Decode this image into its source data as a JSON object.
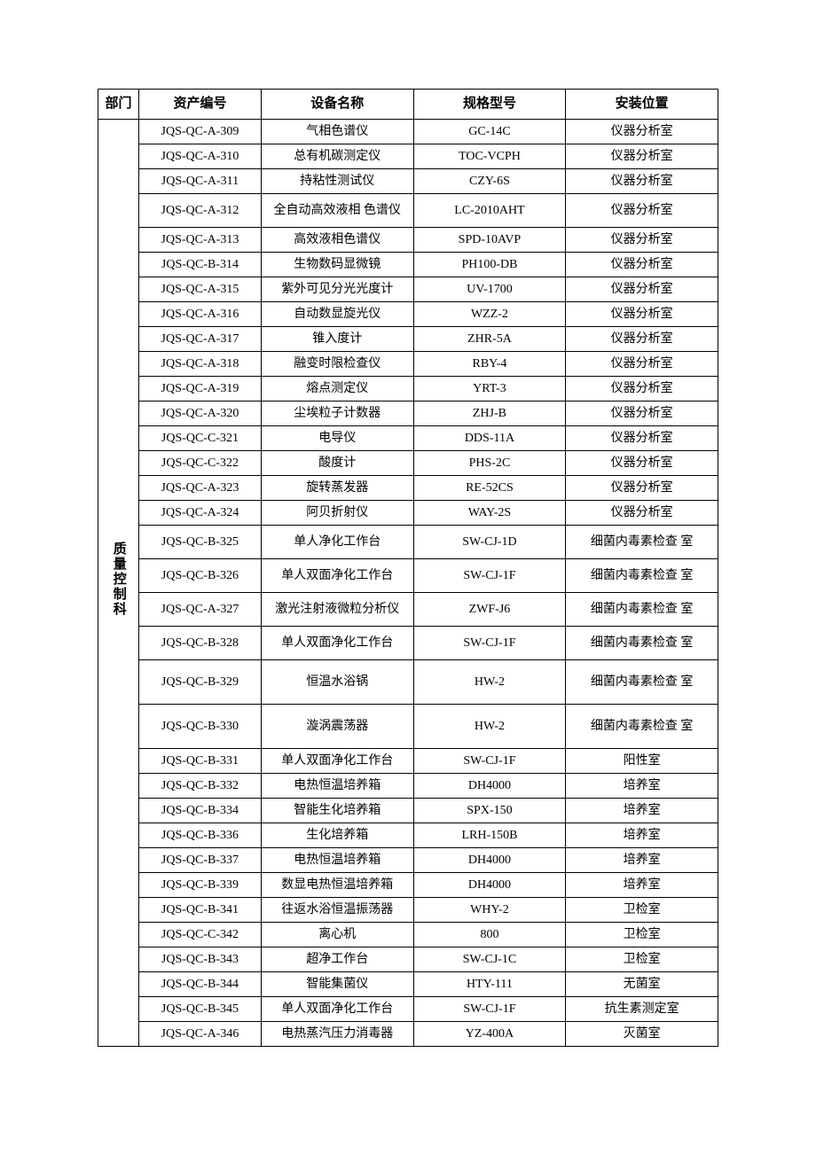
{
  "table": {
    "headers": {
      "dept": "部门",
      "asset_no": "资产编号",
      "device_name": "设备名称",
      "spec_model": "规格型号",
      "install_loc": "安装位置"
    },
    "dept_label": "质量控制科",
    "colors": {
      "border": "#000000",
      "background": "#ffffff",
      "text": "#000000"
    },
    "rows": [
      {
        "asset_no": "JQS-QC-A-309",
        "device_name": "气相色谱仪",
        "spec_model": "GC-14C",
        "install_loc": "仪器分析室"
      },
      {
        "asset_no": "JQS-QC-A-310",
        "device_name": "总有机碳测定仪",
        "spec_model": "TOC-VCPH",
        "install_loc": "仪器分析室"
      },
      {
        "asset_no": "JQS-QC-A-311",
        "device_name": "持粘性测试仪",
        "spec_model": "CZY-6S",
        "install_loc": "仪器分析室"
      },
      {
        "asset_no": "JQS-QC-A-312",
        "device_name": "全自动高效液相 色谱仪",
        "spec_model": "LC-2010AHT",
        "install_loc": "仪器分析室",
        "row_class": "tall-row"
      },
      {
        "asset_no": "JQS-QC-A-313",
        "device_name": "高效液相色谱仪",
        "spec_model": "SPD-10AVP",
        "install_loc": "仪器分析室"
      },
      {
        "asset_no": "JQS-QC-B-314",
        "device_name": "生物数码显微镜",
        "spec_model": "PH100-DB",
        "install_loc": "仪器分析室"
      },
      {
        "asset_no": "JQS-QC-A-315",
        "device_name": "紫外可见分光光度计",
        "spec_model": "UV-1700",
        "install_loc": "仪器分析室"
      },
      {
        "asset_no": "JQS-QC-A-316",
        "device_name": "自动数显旋光仪",
        "spec_model": "WZZ-2",
        "install_loc": "仪器分析室"
      },
      {
        "asset_no": "JQS-QC-A-317",
        "device_name": "锥入度计",
        "spec_model": "ZHR-5A",
        "install_loc": "仪器分析室"
      },
      {
        "asset_no": "JQS-QC-A-318",
        "device_name": "融变时限检查仪",
        "spec_model": "RBY-4",
        "install_loc": "仪器分析室"
      },
      {
        "asset_no": "JQS-QC-A-319",
        "device_name": "熔点测定仪",
        "spec_model": "YRT-3",
        "install_loc": "仪器分析室"
      },
      {
        "asset_no": "JQS-QC-A-320",
        "device_name": "尘埃粒子计数器",
        "spec_model": "ZHJ-B",
        "install_loc": "仪器分析室"
      },
      {
        "asset_no": "JQS-QC-C-321",
        "device_name": "电导仪",
        "spec_model": "DDS-11A",
        "install_loc": "仪器分析室"
      },
      {
        "asset_no": "JQS-QC-C-322",
        "device_name": "酸度计",
        "spec_model": "PHS-2C",
        "install_loc": "仪器分析室"
      },
      {
        "asset_no": "JQS-QC-A-323",
        "device_name": "旋转蒸发器",
        "spec_model": "RE-52CS",
        "install_loc": "仪器分析室"
      },
      {
        "asset_no": "JQS-QC-A-324",
        "device_name": "阿贝折射仪",
        "spec_model": "WAY-2S",
        "install_loc": "仪器分析室"
      },
      {
        "asset_no": "JQS-QC-B-325",
        "device_name": "单人净化工作台",
        "spec_model": "SW-CJ-1D",
        "install_loc": "细菌内毒素检查 室",
        "row_class": "tall-row"
      },
      {
        "asset_no": "JQS-QC-B-326",
        "device_name": "单人双面净化工作台",
        "spec_model": "SW-CJ-1F",
        "install_loc": "细菌内毒素检查 室",
        "row_class": "tall-row"
      },
      {
        "asset_no": "JQS-QC-A-327",
        "device_name": "激光注射液微粒分析仪",
        "spec_model": "ZWF-J6",
        "install_loc": "细菌内毒素检查 室",
        "row_class": "tall-row"
      },
      {
        "asset_no": "JQS-QC-B-328",
        "device_name": "单人双面净化工作台",
        "spec_model": "SW-CJ-1F",
        "install_loc": "细菌内毒素检查 室",
        "row_class": "tall-row"
      },
      {
        "asset_no": "JQS-QC-B-329",
        "device_name": "恒温水浴锅",
        "spec_model": "HW-2",
        "install_loc": "细菌内毒素检查 室",
        "row_class": "taller-row"
      },
      {
        "asset_no": "JQS-QC-B-330",
        "device_name": "漩涡震荡器",
        "spec_model": "HW-2",
        "install_loc": "细菌内毒素检查 室",
        "row_class": "taller-row"
      },
      {
        "asset_no": "JQS-QC-B-331",
        "device_name": "单人双面净化工作台",
        "spec_model": "SW-CJ-1F",
        "install_loc": "阳性室"
      },
      {
        "asset_no": "JQS-QC-B-332",
        "device_name": "电热恒温培养箱",
        "spec_model": "DH4000",
        "install_loc": "培养室"
      },
      {
        "asset_no": "JQS-QC-B-334",
        "device_name": "智能生化培养箱",
        "spec_model": "SPX-150",
        "install_loc": "培养室"
      },
      {
        "asset_no": "JQS-QC-B-336",
        "device_name": "生化培养箱",
        "spec_model": "LRH-150B",
        "install_loc": "培养室"
      },
      {
        "asset_no": "JQS-QC-B-337",
        "device_name": "电热恒温培养箱",
        "spec_model": "DH4000",
        "install_loc": "培养室"
      },
      {
        "asset_no": "JQS-QC-B-339",
        "device_name": "数显电热恒温培养箱",
        "spec_model": "DH4000",
        "install_loc": "培养室"
      },
      {
        "asset_no": "JQS-QC-B-341",
        "device_name": "往返水浴恒温振荡器",
        "spec_model": "WHY-2",
        "install_loc": "卫检室"
      },
      {
        "asset_no": "JQS-QC-C-342",
        "device_name": "离心机",
        "spec_model": "800",
        "install_loc": "卫检室"
      },
      {
        "asset_no": "JQS-QC-B-343",
        "device_name": "超净工作台",
        "spec_model": "SW-CJ-1C",
        "install_loc": "卫检室"
      },
      {
        "asset_no": "JQS-QC-B-344",
        "device_name": "智能集菌仪",
        "spec_model": "HTY-111",
        "install_loc": "无菌室"
      },
      {
        "asset_no": "JQS-QC-B-345",
        "device_name": "单人双面净化工作台",
        "spec_model": "SW-CJ-1F",
        "install_loc": "抗生素测定室"
      },
      {
        "asset_no": "JQS-QC-A-346",
        "device_name": "电热蒸汽压力消毒器",
        "spec_model": "YZ-400A",
        "install_loc": "灭菌室"
      }
    ]
  }
}
